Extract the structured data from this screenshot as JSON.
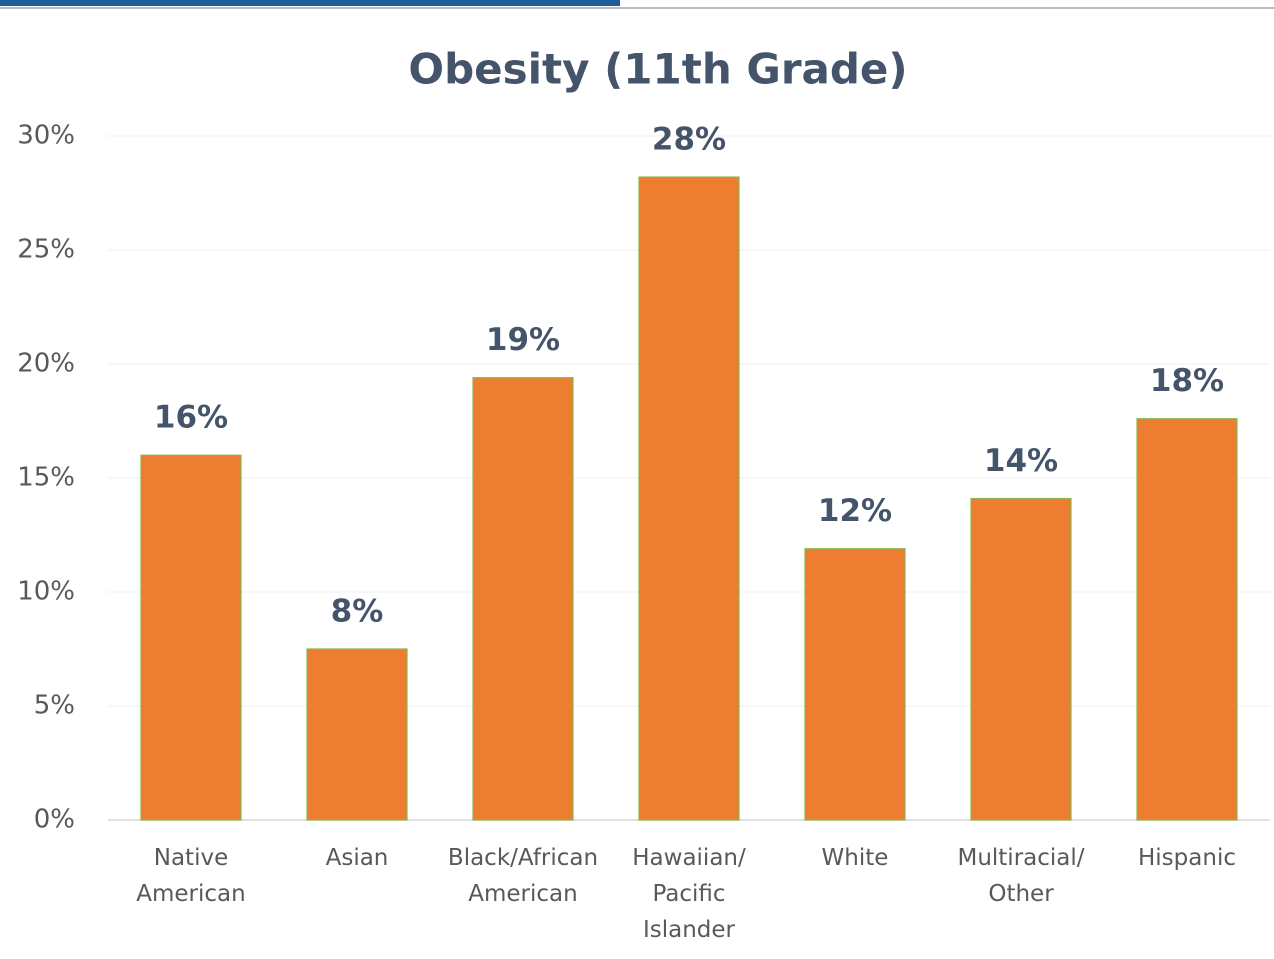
{
  "chart_data": {
    "type": "bar",
    "title": "Obesity (11th Grade)",
    "categories": [
      "Native\nAmerican",
      "Asian",
      "Black/African\nAmerican",
      "Hawaiian/\nPacific\nIslander",
      "White",
      "Multiracial/\nOther",
      "Hispanic"
    ],
    "values": [
      16.0,
      7.5,
      19.4,
      28.2,
      11.9,
      14.1,
      17.6
    ],
    "value_labels": [
      "16%",
      "8%",
      "19%",
      "28%",
      "12%",
      "14%",
      "18%"
    ],
    "color": "#ED7D31",
    "ylim": [
      0,
      30
    ],
    "yticks": [
      {
        "value": 0,
        "label": "0%"
      },
      {
        "value": 5,
        "label": "5%"
      },
      {
        "value": 10,
        "label": "10%"
      },
      {
        "value": 15,
        "label": "15%"
      },
      {
        "value": 20,
        "label": "20%"
      },
      {
        "value": 25,
        "label": "25%"
      },
      {
        "value": 30,
        "label": "30%"
      }
    ],
    "grid": true
  }
}
